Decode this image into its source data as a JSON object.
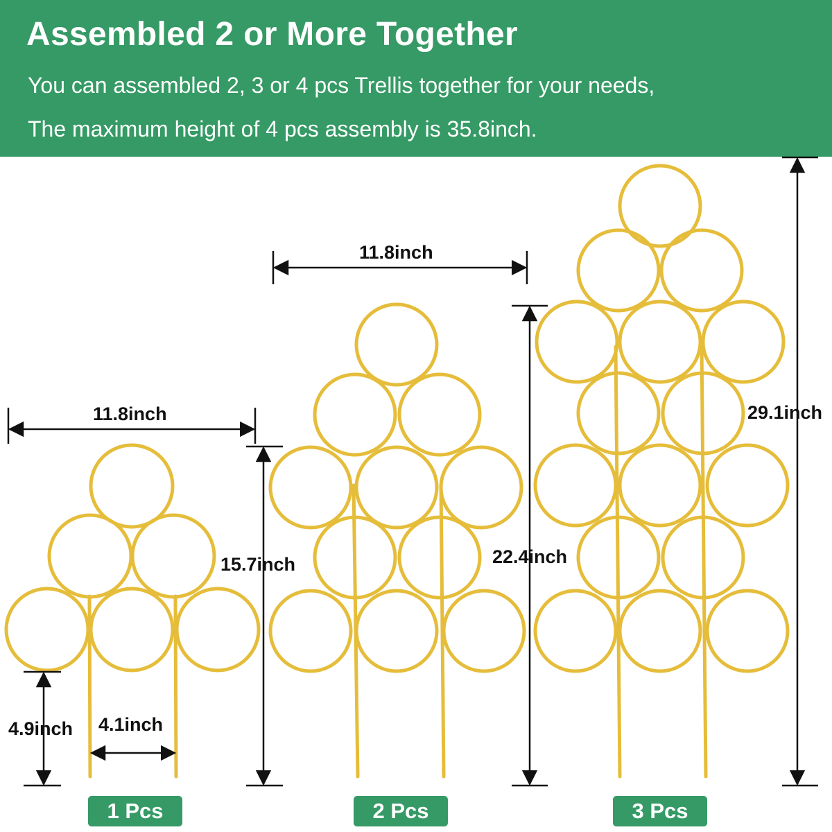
{
  "banner": {
    "title": "Assembled 2 or More Together",
    "line1": "You can assembled 2, 3 or 4 pcs Trellis together for your needs,",
    "line2": "The maximum height of 4 pcs assembly is 35.8inch.",
    "background": "#359a65"
  },
  "trellis_color": "#e5bd3a",
  "dimensions": {
    "one_width": "11.8inch",
    "one_height": "15.7inch",
    "stake_height": "4.9inch",
    "stake_spacing": "4.1inch",
    "two_width": "11.8inch",
    "two_height": "22.4inch",
    "three_height": "29.1inch"
  },
  "labels": {
    "one": "1 Pcs",
    "two": "2 Pcs",
    "three": "3 Pcs"
  }
}
